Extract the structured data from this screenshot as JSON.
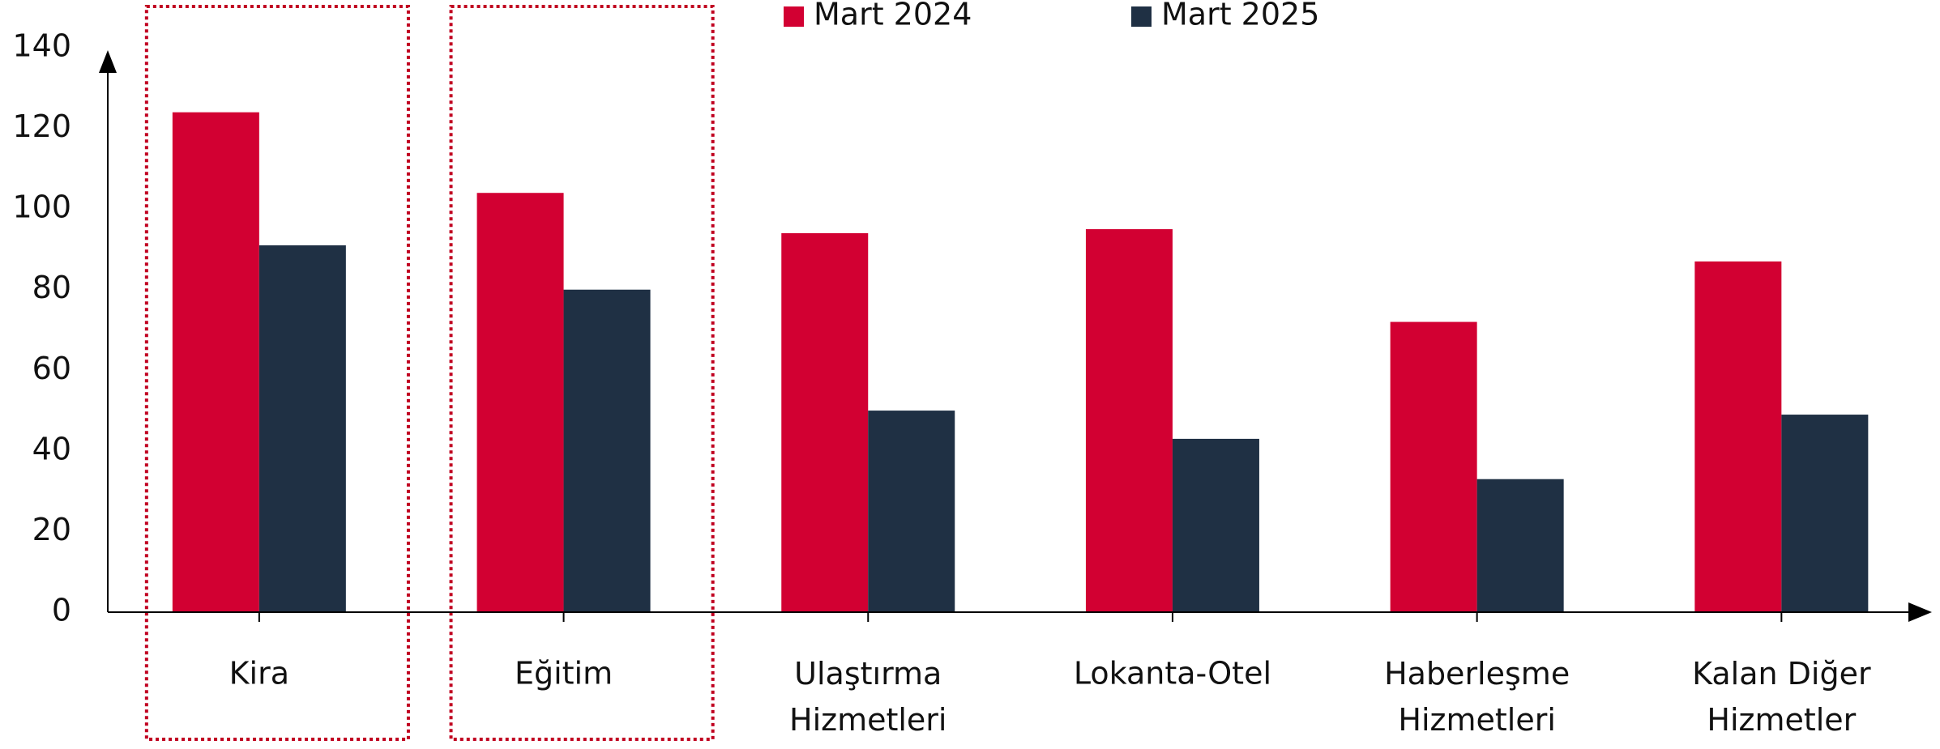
{
  "chart_data": {
    "type": "bar",
    "categories": [
      "Kira",
      "Eğitim",
      "Ulaştırma\nHizmetleri",
      "Lokanta-Otel",
      "Haberleşme\nHizmetleri",
      "Kalan Diğer\nHizmetler"
    ],
    "series": [
      {
        "name": "Mart 2024",
        "color": "#d20032",
        "values": [
          124,
          104,
          94,
          95,
          72,
          87
        ]
      },
      {
        "name": "Mart 2025",
        "color": "#1f3044",
        "values": [
          91,
          80,
          50,
          43,
          33,
          49
        ]
      }
    ],
    "ylim": [
      0,
      140
    ],
    "yticks": [
      0,
      20,
      40,
      60,
      80,
      100,
      120,
      140
    ],
    "grid": false,
    "legend": "top",
    "highlight": [
      0,
      1
    ],
    "highlight_color": "#c00020"
  }
}
